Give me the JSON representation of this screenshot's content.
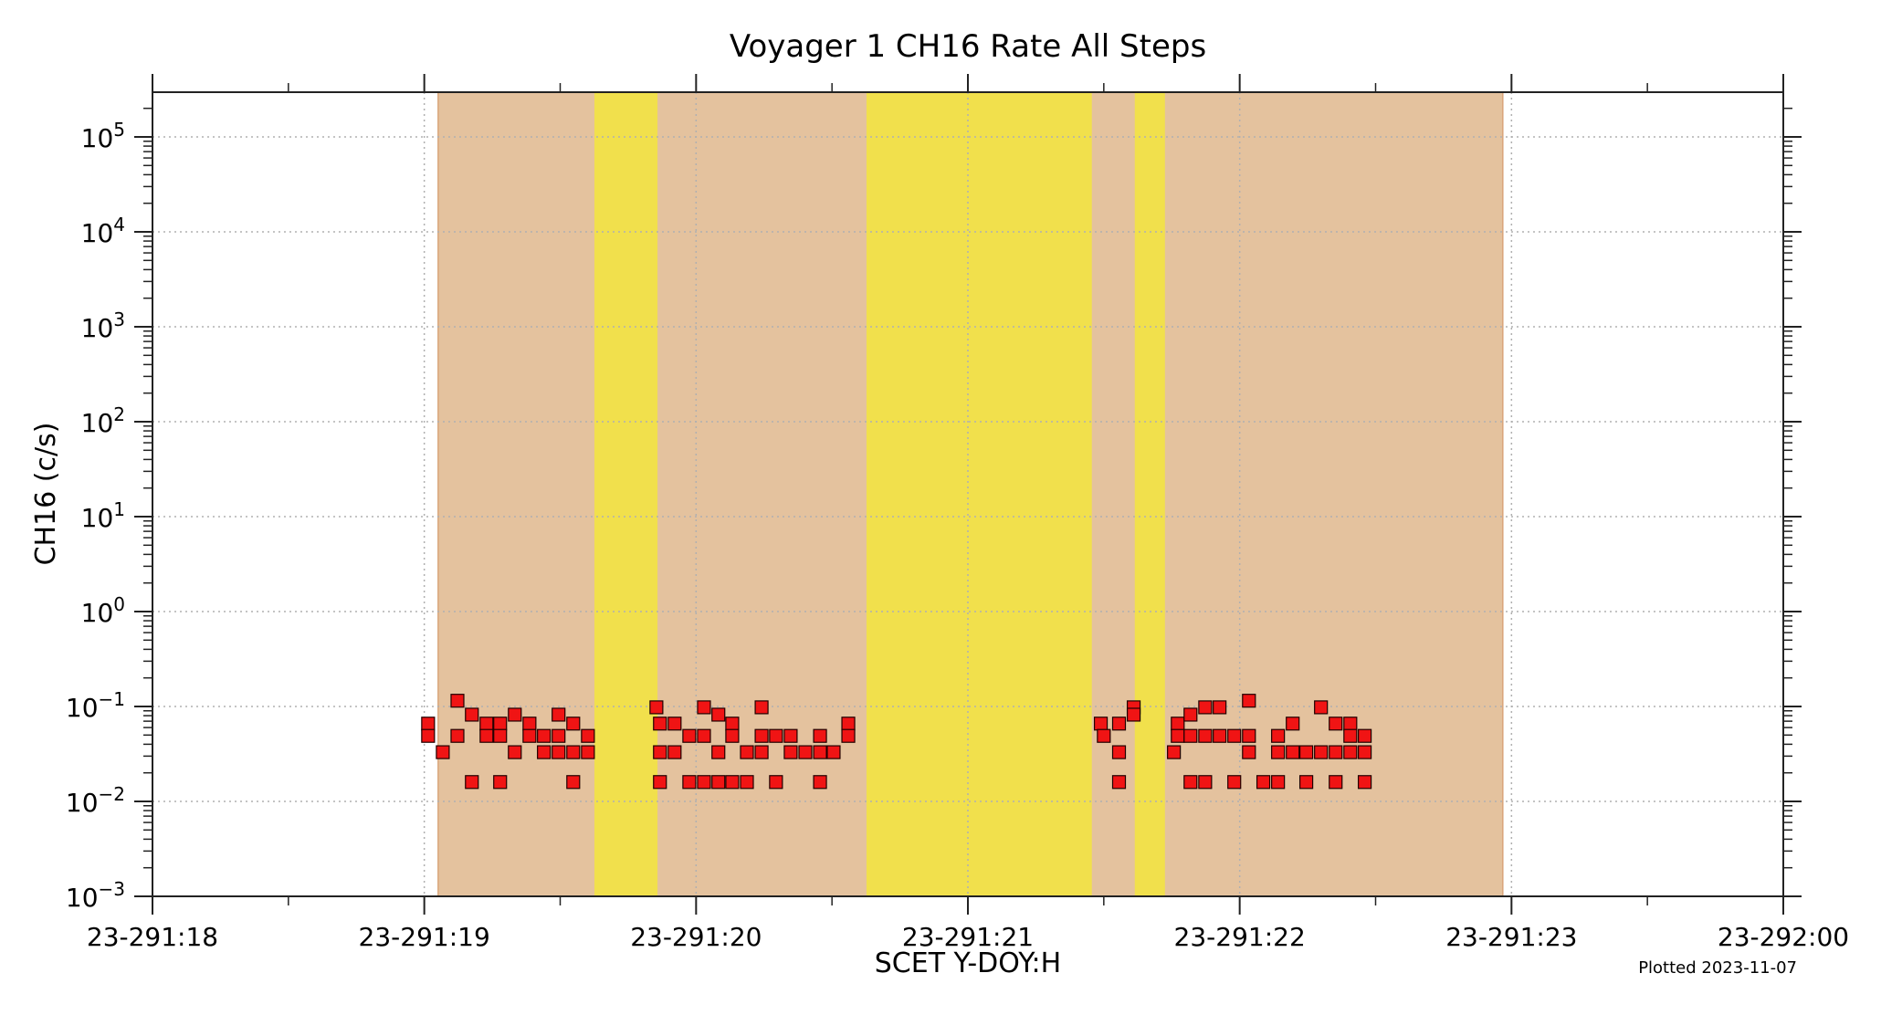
{
  "chart_data": {
    "type": "scatter",
    "title": "Voyager 1  CH16 Rate All Steps",
    "xlabel": "SCET Y-DOY:H",
    "ylabel": "CH16 (c/s)",
    "yscale": "log",
    "ylim": [
      0.001,
      300000
    ],
    "xlim_hours": [
      18,
      24
    ],
    "x_ticks": [
      "23-291:18",
      "23-291:19",
      "23-291:20",
      "23-291:21",
      "23-291:22",
      "23-291:23",
      "23-292:00"
    ],
    "y_ticks": [
      {
        "base": "10",
        "exp": "5",
        "value": 100000
      },
      {
        "base": "10",
        "exp": "4",
        "value": 10000
      },
      {
        "base": "10",
        "exp": "3",
        "value": 1000
      },
      {
        "base": "10",
        "exp": "2",
        "value": 100
      },
      {
        "base": "10",
        "exp": "1",
        "value": 10
      },
      {
        "base": "10",
        "exp": "0",
        "value": 1
      },
      {
        "base": "10",
        "exp": "−1",
        "value": 0.1
      },
      {
        "base": "10",
        "exp": "−2",
        "value": 0.01
      },
      {
        "base": "10",
        "exp": "−3",
        "value": 0.001
      }
    ],
    "grid": true,
    "footnote": "Plotted 2023-11-07",
    "bands": [
      {
        "color": "#e4c29e",
        "start_hour": 19.051,
        "end_hour": 22.968
      },
      {
        "color": "#f1e04c",
        "start_hour": 19.626,
        "end_hour": 19.858
      },
      {
        "color": "#f1e04c",
        "start_hour": 20.627,
        "end_hour": 21.456
      },
      {
        "color": "#f1e04c",
        "start_hour": 21.614,
        "end_hour": 21.725
      }
    ],
    "marker": {
      "shape": "square",
      "color": "#f01414",
      "edge": "#200000"
    },
    "points": [
      [
        19.014,
        0.066
      ],
      [
        19.014,
        0.049
      ],
      [
        19.068,
        0.033
      ],
      [
        19.122,
        0.115
      ],
      [
        19.122,
        0.049
      ],
      [
        19.175,
        0.082
      ],
      [
        19.175,
        0.016
      ],
      [
        19.229,
        0.066
      ],
      [
        19.229,
        0.049
      ],
      [
        19.279,
        0.066
      ],
      [
        19.279,
        0.049
      ],
      [
        19.279,
        0.016
      ],
      [
        19.333,
        0.082
      ],
      [
        19.333,
        0.033
      ],
      [
        19.387,
        0.066
      ],
      [
        19.387,
        0.049
      ],
      [
        19.44,
        0.049
      ],
      [
        19.44,
        0.033
      ],
      [
        19.494,
        0.082
      ],
      [
        19.494,
        0.049
      ],
      [
        19.494,
        0.033
      ],
      [
        19.548,
        0.066
      ],
      [
        19.548,
        0.033
      ],
      [
        19.548,
        0.016
      ],
      [
        19.602,
        0.049
      ],
      [
        19.602,
        0.033
      ],
      [
        19.854,
        0.098
      ],
      [
        19.867,
        0.066
      ],
      [
        19.867,
        0.033
      ],
      [
        19.867,
        0.016
      ],
      [
        19.921,
        0.066
      ],
      [
        19.921,
        0.033
      ],
      [
        19.975,
        0.049
      ],
      [
        19.975,
        0.016
      ],
      [
        20.029,
        0.098
      ],
      [
        20.029,
        0.049
      ],
      [
        20.029,
        0.016
      ],
      [
        20.082,
        0.082
      ],
      [
        20.082,
        0.033
      ],
      [
        20.082,
        0.016
      ],
      [
        20.133,
        0.066
      ],
      [
        20.133,
        0.049
      ],
      [
        20.133,
        0.016
      ],
      [
        20.187,
        0.033
      ],
      [
        20.187,
        0.016
      ],
      [
        20.241,
        0.098
      ],
      [
        20.241,
        0.049
      ],
      [
        20.241,
        0.033
      ],
      [
        20.294,
        0.049
      ],
      [
        20.294,
        0.016
      ],
      [
        20.348,
        0.049
      ],
      [
        20.348,
        0.033
      ],
      [
        20.402,
        0.033
      ],
      [
        20.456,
        0.049
      ],
      [
        20.456,
        0.033
      ],
      [
        20.456,
        0.016
      ],
      [
        20.506,
        0.033
      ],
      [
        20.56,
        0.066
      ],
      [
        20.56,
        0.049
      ],
      [
        21.489,
        0.066
      ],
      [
        21.5,
        0.049
      ],
      [
        21.556,
        0.066
      ],
      [
        21.556,
        0.033
      ],
      [
        21.556,
        0.016
      ],
      [
        21.61,
        0.098
      ],
      [
        21.61,
        0.082
      ],
      [
        21.758,
        0.033
      ],
      [
        21.772,
        0.066
      ],
      [
        21.772,
        0.049
      ],
      [
        21.819,
        0.082
      ],
      [
        21.819,
        0.049
      ],
      [
        21.819,
        0.016
      ],
      [
        21.873,
        0.098
      ],
      [
        21.873,
        0.049
      ],
      [
        21.873,
        0.016
      ],
      [
        21.926,
        0.098
      ],
      [
        21.926,
        0.049
      ],
      [
        21.98,
        0.049
      ],
      [
        21.98,
        0.016
      ],
      [
        22.034,
        0.115
      ],
      [
        22.034,
        0.049
      ],
      [
        22.034,
        0.033
      ],
      [
        22.087,
        0.016
      ],
      [
        22.141,
        0.049
      ],
      [
        22.141,
        0.033
      ],
      [
        22.141,
        0.016
      ],
      [
        22.195,
        0.066
      ],
      [
        22.195,
        0.033
      ],
      [
        22.245,
        0.033
      ],
      [
        22.245,
        0.016
      ],
      [
        22.299,
        0.098
      ],
      [
        22.299,
        0.033
      ],
      [
        22.353,
        0.066
      ],
      [
        22.353,
        0.033
      ],
      [
        22.353,
        0.016
      ],
      [
        22.407,
        0.066
      ],
      [
        22.407,
        0.049
      ],
      [
        22.407,
        0.033
      ],
      [
        22.46,
        0.049
      ],
      [
        22.46,
        0.033
      ],
      [
        22.46,
        0.016
      ]
    ]
  }
}
